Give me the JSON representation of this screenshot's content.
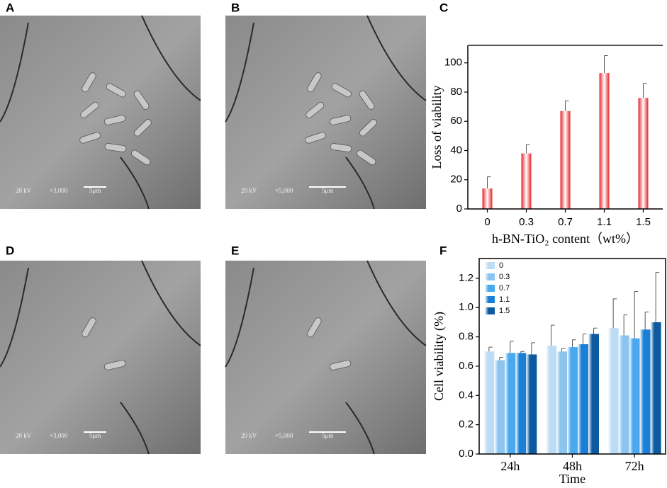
{
  "panels": [
    {
      "label": "A",
      "voltage": "20 kV",
      "magnification": "×3,000",
      "scale": "5μm"
    },
    {
      "label": "B",
      "voltage": "20 kV",
      "magnification": "×5,000",
      "scale": "5μm"
    },
    {
      "label": "D",
      "voltage": "20 kV",
      "magnification": "×3,000",
      "scale": "5μm"
    },
    {
      "label": "E",
      "voltage": "20 kV",
      "magnification": "×5,000",
      "scale": "5μm"
    }
  ],
  "chart_data": [
    {
      "type": "bar",
      "label": "C",
      "x_label": "h-BN-TiO₂ content（wt%）",
      "y_label": "Loss of viability",
      "categories": [
        "0",
        "0.3",
        "0.7",
        "1.1",
        "1.5"
      ],
      "values": [
        14,
        38,
        67,
        93,
        76
      ],
      "errors": [
        8,
        6,
        7,
        12,
        10
      ],
      "color": "#e8232a",
      "ylim": [
        0,
        112
      ],
      "yticks": [
        0,
        20,
        40,
        60,
        80,
        100
      ]
    },
    {
      "type": "grouped_bar",
      "label": "F",
      "x_label": "Time",
      "y_label": "Cell viability (%)",
      "categories": [
        "24h",
        "48h",
        "72h"
      ],
      "series": [
        {
          "name": "0",
          "color": "#bcdcf5",
          "values": [
            0.7,
            0.74,
            0.86
          ],
          "errors": [
            0.03,
            0.14,
            0.2
          ]
        },
        {
          "name": "0.3",
          "color": "#8cc4ef",
          "values": [
            0.64,
            0.7,
            0.81
          ],
          "errors": [
            0.02,
            0.02,
            0.14
          ]
        },
        {
          "name": "0.7",
          "color": "#4aa8ee",
          "values": [
            0.69,
            0.73,
            0.79
          ],
          "errors": [
            0.08,
            0.05,
            0.32
          ]
        },
        {
          "name": "1.1",
          "color": "#1a7fd6",
          "values": [
            0.69,
            0.75,
            0.85
          ],
          "errors": [
            0.01,
            0.07,
            0.12
          ]
        },
        {
          "name": "1.5",
          "color": "#0d5aa0",
          "values": [
            0.68,
            0.82,
            0.9
          ],
          "errors": [
            0.08,
            0.04,
            0.34
          ]
        }
      ],
      "ylim": [
        0,
        1.335
      ],
      "yticks": [
        {
          "value": 0,
          "label": "0.0"
        },
        0.2,
        0.4,
        0.6,
        0.8,
        {
          "value": 1,
          "label": "1.0"
        },
        1.2
      ],
      "legend": "upper left"
    }
  ]
}
